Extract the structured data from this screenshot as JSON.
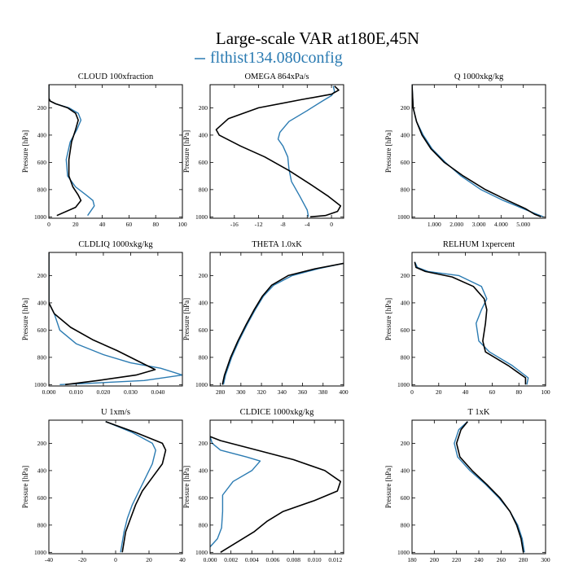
{
  "figure": {
    "title": "Large-scale VAR at180E,45N",
    "legend_label": "flthist134.080config",
    "legend_color": "#2b7bb2"
  },
  "colors": {
    "series_blue": "#2b7bb2",
    "series_black": "#000000"
  },
  "chart_data": [
    {
      "type": "line",
      "title": "CLOUD  100xfraction",
      "ylabel": "Pressure [hPa]",
      "xlim": [
        0,
        100
      ],
      "ylim": [
        1010,
        30
      ],
      "xticks": [
        0,
        20,
        40,
        60,
        80,
        100
      ],
      "xtick_labels": [
        "0",
        "20",
        "40",
        "60",
        "80",
        "100"
      ],
      "yticks": [
        200,
        400,
        600,
        800,
        1000
      ],
      "ytick_labels": [
        "200",
        "400",
        "600",
        "800",
        "1000"
      ],
      "series": [
        {
          "color": "#2b7bb2",
          "x": [
            0,
            0,
            0,
            1,
            5,
            15,
            22,
            24,
            21,
            16,
            13,
            14,
            20,
            28,
            33,
            34,
            29
          ],
          "y": [
            30,
            100,
            130,
            150,
            170,
            200,
            240,
            290,
            360,
            450,
            580,
            700,
            780,
            840,
            880,
            920,
            990
          ]
        },
        {
          "color": "#000000",
          "x": [
            0,
            0,
            0,
            1,
            5,
            14,
            20,
            22,
            20,
            17,
            15,
            15,
            18,
            22,
            24,
            20,
            6
          ],
          "y": [
            30,
            100,
            130,
            150,
            170,
            200,
            240,
            290,
            360,
            450,
            580,
            700,
            780,
            840,
            880,
            930,
            990
          ]
        }
      ]
    },
    {
      "type": "line",
      "title": "OMEGA  864xPa/s",
      "ylabel": "Pressure [hPa]",
      "xlim": [
        -20,
        2
      ],
      "ylim": [
        1010,
        30
      ],
      "xticks": [
        -16,
        -12,
        -8,
        -4,
        0
      ],
      "xtick_labels": [
        "-16",
        "-12",
        "-8",
        "-4",
        "0"
      ],
      "yticks": [
        200,
        400,
        600,
        800,
        1000
      ],
      "ytick_labels": [
        "200",
        "400",
        "600",
        "800",
        "1000"
      ],
      "series": [
        {
          "color": "#2b7bb2",
          "x": [
            0.3,
            0.5,
            0,
            -1.5,
            -4,
            -7,
            -8.5,
            -8.8,
            -8,
            -7.2,
            -7,
            -6.6,
            -5.2,
            -4,
            -3.8
          ],
          "y": [
            40,
            80,
            110,
            150,
            220,
            300,
            380,
            430,
            480,
            560,
            650,
            740,
            850,
            950,
            1000
          ]
        },
        {
          "color": "#000000",
          "x": [
            0.5,
            1.2,
            0,
            -5,
            -12,
            -17,
            -19,
            -18.5,
            -15,
            -11,
            -7,
            -3.5,
            -0.5,
            1.5,
            1,
            -1,
            -3.5
          ],
          "y": [
            40,
            70,
            100,
            140,
            200,
            280,
            360,
            400,
            480,
            560,
            660,
            760,
            850,
            920,
            960,
            990,
            1000
          ]
        }
      ]
    },
    {
      "type": "line",
      "title": "Q  1000xkg/kg",
      "ylabel": "Pressure [hPa]",
      "xlim": [
        0,
        6.0
      ],
      "ylim": [
        1010,
        30
      ],
      "xticks": [
        1,
        2,
        3,
        4,
        5
      ],
      "xtick_labels": [
        "1.000",
        "2.000",
        "3.000",
        "4.000",
        "5.000"
      ],
      "yticks": [
        200,
        400,
        600,
        800,
        1000
      ],
      "ytick_labels": [
        "200",
        "400",
        "600",
        "800",
        "1000"
      ],
      "series": [
        {
          "color": "#2b7bb2",
          "x": [
            0,
            0.05,
            0.2,
            0.5,
            0.9,
            1.5,
            2.2,
            3.1,
            4.1,
            5.0,
            5.6,
            5.9
          ],
          "y": [
            30,
            200,
            300,
            400,
            500,
            600,
            700,
            800,
            880,
            940,
            980,
            1000
          ]
        },
        {
          "color": "#000000",
          "x": [
            0,
            0.05,
            0.2,
            0.45,
            0.85,
            1.45,
            2.3,
            3.3,
            4.3,
            5.1,
            5.5,
            5.8
          ],
          "y": [
            30,
            200,
            300,
            400,
            500,
            600,
            700,
            800,
            880,
            940,
            980,
            1000
          ]
        }
      ]
    },
    {
      "type": "line",
      "title": "CLDLIQ  1000xkg/kg",
      "ylabel": "Pressure [hPa]",
      "xlim": [
        0,
        0.049
      ],
      "ylim": [
        1010,
        30
      ],
      "xticks": [
        0,
        0.01,
        0.02,
        0.03,
        0.04
      ],
      "xtick_labels": [
        "0.000",
        "0.010",
        "0.020",
        "0.030",
        "0.040"
      ],
      "yticks": [
        200,
        400,
        600,
        800,
        1000
      ],
      "ytick_labels": [
        "200",
        "400",
        "600",
        "800",
        "1000"
      ],
      "series": [
        {
          "color": "#2b7bb2",
          "x": [
            0,
            0,
            0.002,
            0.004,
            0.01,
            0.02,
            0.03,
            0.041,
            0.049,
            0.035,
            0.015,
            0.004
          ],
          "y": [
            30,
            400,
            480,
            600,
            700,
            780,
            840,
            880,
            930,
            970,
            990,
            1000
          ]
        },
        {
          "color": "#000000",
          "x": [
            0,
            0,
            0.002,
            0.008,
            0.016,
            0.025,
            0.033,
            0.039,
            0.032,
            0.018,
            0.006
          ],
          "y": [
            30,
            400,
            480,
            580,
            670,
            750,
            830,
            890,
            930,
            970,
            1000
          ]
        }
      ]
    },
    {
      "type": "line",
      "title": "THETA  1.0xK",
      "ylabel": "Pressure [hPa]",
      "xlim": [
        270,
        400
      ],
      "ylim": [
        1010,
        30
      ],
      "xticks": [
        280,
        300,
        320,
        340,
        360,
        380,
        400
      ],
      "xtick_labels": [
        "280",
        "300",
        "320",
        "340",
        "360",
        "380",
        "400"
      ],
      "yticks": [
        200,
        400,
        600,
        800,
        1000
      ],
      "ytick_labels": [
        "200",
        "400",
        "600",
        "800",
        "1000"
      ],
      "series": [
        {
          "color": "#2b7bb2",
          "x": [
            400,
            375,
            350,
            332,
            322,
            314,
            306,
            298,
            291,
            285,
            283
          ],
          "y": [
            110,
            150,
            200,
            270,
            350,
            450,
            560,
            680,
            800,
            930,
            1000
          ]
        },
        {
          "color": "#000000",
          "x": [
            400,
            372,
            346,
            330,
            321,
            313,
            305,
            297,
            290,
            284,
            282
          ],
          "y": [
            110,
            150,
            200,
            270,
            350,
            450,
            560,
            680,
            800,
            930,
            1000
          ]
        }
      ]
    },
    {
      "type": "line",
      "title": "RELHUM  1xpercent",
      "ylabel": "Pressure [hPa]",
      "xlim": [
        0,
        100
      ],
      "ylim": [
        1010,
        30
      ],
      "xticks": [
        0,
        20,
        40,
        60,
        80,
        100
      ],
      "xtick_labels": [
        "0",
        "20",
        "40",
        "60",
        "80",
        "100"
      ],
      "yticks": [
        200,
        400,
        600,
        800,
        1000
      ],
      "ytick_labels": [
        "200",
        "400",
        "600",
        "800",
        "1000"
      ],
      "series": [
        {
          "color": "#2b7bb2",
          "x": [
            2,
            4,
            12,
            35,
            52,
            56,
            52,
            48,
            50,
            58,
            75,
            87,
            86
          ],
          "y": [
            100,
            140,
            170,
            200,
            280,
            370,
            450,
            550,
            680,
            760,
            860,
            950,
            1000
          ]
        },
        {
          "color": "#000000",
          "x": [
            2,
            3,
            10,
            30,
            46,
            54,
            56,
            55,
            53,
            55,
            72,
            85,
            85
          ],
          "y": [
            100,
            140,
            170,
            210,
            280,
            370,
            450,
            550,
            680,
            760,
            860,
            950,
            1000
          ]
        }
      ]
    },
    {
      "type": "line",
      "title": "U  1xm/s",
      "ylabel": "Pressure [hPa]",
      "xlim": [
        -40,
        40
      ],
      "ylim": [
        1010,
        30
      ],
      "xticks": [
        -40,
        -20,
        0,
        20,
        40
      ],
      "xtick_labels": [
        "-40",
        "-20",
        "0",
        "20",
        "40"
      ],
      "yticks": [
        200,
        400,
        600,
        800,
        1000
      ],
      "ytick_labels": [
        "200",
        "400",
        "600",
        "800",
        "1000"
      ],
      "series": [
        {
          "color": "#2b7bb2",
          "x": [
            -6,
            10,
            22,
            24,
            22,
            18,
            14,
            10,
            7,
            5,
            3
          ],
          "y": [
            40,
            120,
            200,
            250,
            350,
            450,
            550,
            650,
            750,
            850,
            1000
          ]
        },
        {
          "color": "#000000",
          "x": [
            -6,
            12,
            28,
            30,
            28,
            22,
            16,
            12,
            9,
            6,
            4
          ],
          "y": [
            40,
            120,
            200,
            250,
            350,
            450,
            550,
            650,
            750,
            850,
            1000
          ]
        }
      ]
    },
    {
      "type": "line",
      "title": "CLDICE  1000xkg/kg",
      "ylabel": "Pressure [hPa]",
      "xlim": [
        0,
        0.0128
      ],
      "ylim": [
        1010,
        30
      ],
      "xticks": [
        0,
        0.002,
        0.004,
        0.006,
        0.008,
        0.01,
        0.012
      ],
      "xtick_labels": [
        "0.000",
        "0.002",
        "0.004",
        "0.006",
        "0.008",
        "0.010",
        "0.012"
      ],
      "yticks": [
        200,
        400,
        600,
        800,
        1000
      ],
      "ytick_labels": [
        "200",
        "400",
        "600",
        "800",
        "1000"
      ],
      "series": [
        {
          "color": "#2b7bb2",
          "x": [
            0,
            0.0002,
            0.001,
            0.0035,
            0.0048,
            0.004,
            0.0022,
            0.0012,
            0.0012,
            0.0011,
            0.0007,
            0
          ],
          "y": [
            150,
            200,
            250,
            300,
            330,
            400,
            480,
            580,
            700,
            820,
            900,
            960
          ]
        },
        {
          "color": "#000000",
          "x": [
            0,
            0.001,
            0.004,
            0.008,
            0.011,
            0.0125,
            0.0122,
            0.01,
            0.007,
            0.0055,
            0.005,
            0.0042,
            0.001
          ],
          "y": [
            150,
            180,
            240,
            320,
            400,
            480,
            550,
            620,
            700,
            770,
            800,
            850,
            1000
          ]
        }
      ]
    },
    {
      "type": "line",
      "title": "T  1xK",
      "ylabel": "Pressure [hPa]",
      "xlim": [
        180,
        300
      ],
      "ylim": [
        1010,
        30
      ],
      "xticks": [
        180,
        200,
        220,
        240,
        260,
        280,
        300
      ],
      "xtick_labels": [
        "180",
        "200",
        "220",
        "240",
        "260",
        "280",
        "300"
      ],
      "yticks": [
        200,
        400,
        600,
        800,
        1000
      ],
      "ytick_labels": [
        "200",
        "400",
        "600",
        "800",
        "1000"
      ],
      "series": [
        {
          "color": "#2b7bb2",
          "x": [
            230,
            222,
            218,
            221,
            232,
            246,
            258,
            268,
            275,
            279,
            281
          ],
          "y": [
            40,
            100,
            200,
            300,
            400,
            500,
            600,
            700,
            800,
            900,
            1000
          ]
        },
        {
          "color": "#000000",
          "x": [
            230,
            224,
            220,
            223,
            234,
            247,
            259,
            268,
            274,
            278,
            280
          ],
          "y": [
            40,
            100,
            200,
            300,
            400,
            500,
            600,
            700,
            800,
            900,
            1000
          ]
        }
      ]
    }
  ]
}
